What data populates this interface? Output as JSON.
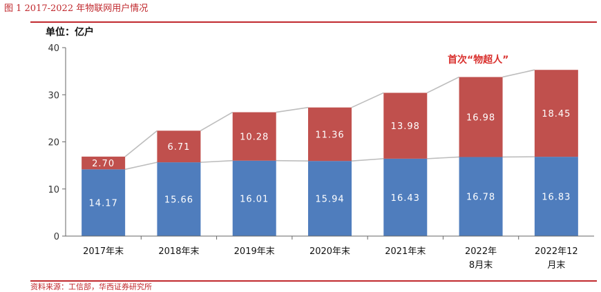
{
  "figure": {
    "title": "图 1 2017-2022 年物联网用户情况",
    "source": "资料来源：工信部，华西证券研究所"
  },
  "chart_data": {
    "type": "bar",
    "stacked": true,
    "ylabel": "单位：亿户",
    "ylim": [
      0,
      40
    ],
    "yticks": [
      "0",
      "10",
      "20",
      "30",
      "40"
    ],
    "categories": [
      "2017年末",
      "2018年末",
      "2019年末",
      "2020年末",
      "2021年末",
      "2022年8月末",
      "2022年12月末"
    ],
    "category_labels": [
      [
        "2017年末"
      ],
      [
        "2018年末"
      ],
      [
        "2019年末"
      ],
      [
        "2020年末"
      ],
      [
        "2021年末"
      ],
      [
        "2022年",
        "8月末"
      ],
      [
        "2022年12",
        "月末"
      ]
    ],
    "series": [
      {
        "values": [
          14.17,
          15.66,
          16.01,
          15.94,
          16.43,
          16.78,
          16.83
        ],
        "labels": [
          "14.17",
          "15.66",
          "16.01",
          "15.94",
          "16.43",
          "16.78",
          "16.83"
        ],
        "color": "#4f7dbd"
      },
      {
        "values": [
          2.7,
          6.71,
          10.28,
          11.36,
          13.98,
          16.98,
          18.45
        ],
        "labels": [
          "2.70",
          "6.71",
          "10.28",
          "11.36",
          "13.98",
          "16.98",
          "18.45"
        ],
        "color": "#c0504d"
      }
    ],
    "annotation": "首次“物超人”",
    "connector_lines": true,
    "grid": false
  }
}
